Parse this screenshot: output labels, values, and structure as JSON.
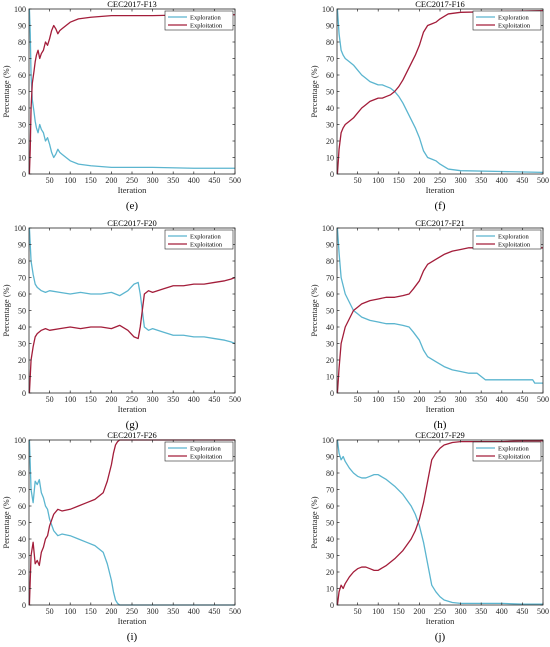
{
  "chart_data": [
    {
      "type": "line",
      "subfigure": "(e)",
      "title": "CEC2017-F13",
      "xlabel": "Iteration",
      "ylabel": "Percentage (%)",
      "xlim": [
        0,
        500
      ],
      "ylim": [
        0,
        100
      ],
      "xticks": [
        50,
        100,
        150,
        200,
        250,
        300,
        350,
        400,
        450,
        500
      ],
      "yticks": [
        0,
        10,
        20,
        30,
        40,
        50,
        60,
        70,
        80,
        90,
        100
      ],
      "legend": "top-right",
      "series": [
        {
          "name": "Exploration",
          "color": "#5bb5cf",
          "x": [
            1,
            3,
            5,
            8,
            12,
            15,
            18,
            22,
            26,
            30,
            35,
            40,
            45,
            50,
            55,
            60,
            65,
            70,
            75,
            80,
            90,
            100,
            120,
            150,
            200,
            250,
            300,
            400,
            500
          ],
          "y": [
            100,
            85,
            60,
            45,
            38,
            32,
            28,
            25,
            30,
            27,
            25,
            20,
            22,
            18,
            13,
            10,
            12,
            15,
            13,
            12,
            10,
            8,
            6,
            5,
            4,
            4,
            4,
            3.5,
            3.5
          ]
        },
        {
          "name": "Exploitation",
          "color": "#a31d3a",
          "x": [
            1,
            3,
            5,
            8,
            12,
            15,
            18,
            22,
            26,
            30,
            35,
            40,
            45,
            50,
            55,
            60,
            65,
            70,
            75,
            80,
            90,
            100,
            120,
            150,
            200,
            250,
            300,
            400,
            500
          ],
          "y": [
            0,
            15,
            40,
            55,
            62,
            68,
            72,
            75,
            70,
            73,
            75,
            80,
            78,
            82,
            87,
            90,
            88,
            85,
            87,
            88,
            90,
            92,
            94,
            95,
            96,
            96,
            96,
            96.5,
            96.5
          ]
        }
      ]
    },
    {
      "type": "line",
      "subfigure": "(f)",
      "title": "CEC2017-F16",
      "xlabel": "Iteration",
      "ylabel": "Percentage (%)",
      "xlim": [
        0,
        500
      ],
      "ylim": [
        0,
        100
      ],
      "xticks": [
        50,
        100,
        150,
        200,
        250,
        300,
        350,
        400,
        450,
        500
      ],
      "yticks": [
        0,
        10,
        20,
        30,
        40,
        50,
        60,
        70,
        80,
        90,
        100
      ],
      "legend": "top-right",
      "series": [
        {
          "name": "Exploration",
          "color": "#5bb5cf",
          "x": [
            1,
            5,
            10,
            15,
            20,
            30,
            40,
            50,
            60,
            70,
            80,
            90,
            100,
            110,
            120,
            130,
            140,
            150,
            160,
            170,
            180,
            190,
            200,
            210,
            220,
            230,
            240,
            250,
            270,
            300,
            400,
            500
          ],
          "y": [
            100,
            85,
            75,
            72,
            70,
            68,
            66,
            63,
            60,
            58,
            56,
            55,
            54,
            54,
            53,
            52,
            50,
            47,
            43,
            38,
            33,
            28,
            22,
            14,
            10,
            9,
            8,
            6,
            3,
            2,
            1.5,
            1
          ]
        },
        {
          "name": "Exploitation",
          "color": "#a31d3a",
          "x": [
            1,
            5,
            10,
            15,
            20,
            30,
            40,
            50,
            60,
            70,
            80,
            90,
            100,
            110,
            120,
            130,
            140,
            150,
            160,
            170,
            180,
            190,
            200,
            210,
            220,
            230,
            240,
            250,
            270,
            300,
            400,
            500
          ],
          "y": [
            0,
            15,
            25,
            28,
            30,
            32,
            34,
            37,
            40,
            42,
            44,
            45,
            46,
            46,
            47,
            48,
            50,
            53,
            57,
            62,
            67,
            72,
            78,
            86,
            90,
            91,
            92,
            94,
            97,
            98,
            98.5,
            99
          ]
        }
      ]
    },
    {
      "type": "line",
      "subfigure": "(g)",
      "title": "CEC2017-F20",
      "xlabel": "Iteration",
      "ylabel": "Percentage (%)",
      "xlim": [
        0,
        500
      ],
      "ylim": [
        0,
        100
      ],
      "xticks": [
        50,
        100,
        150,
        200,
        250,
        300,
        350,
        400,
        450,
        500
      ],
      "yticks": [
        0,
        10,
        20,
        30,
        40,
        50,
        60,
        70,
        80,
        90,
        100
      ],
      "legend": "top-right",
      "series": [
        {
          "name": "Exploration",
          "color": "#5bb5cf",
          "x": [
            1,
            5,
            10,
            15,
            20,
            30,
            40,
            50,
            75,
            100,
            125,
            150,
            175,
            200,
            220,
            240,
            255,
            265,
            270,
            275,
            280,
            290,
            300,
            325,
            350,
            375,
            400,
            425,
            450,
            475,
            490,
            500
          ],
          "y": [
            100,
            80,
            72,
            66,
            64,
            62,
            61,
            62,
            61,
            60,
            61,
            60,
            60,
            61,
            59,
            62,
            66,
            67,
            60,
            50,
            40,
            38,
            39,
            37,
            35,
            35,
            34,
            34,
            33,
            32,
            31,
            30
          ]
        },
        {
          "name": "Exploitation",
          "color": "#a31d3a",
          "x": [
            1,
            5,
            10,
            15,
            20,
            30,
            40,
            50,
            75,
            100,
            125,
            150,
            175,
            200,
            220,
            240,
            255,
            265,
            270,
            275,
            280,
            290,
            300,
            325,
            350,
            375,
            400,
            425,
            450,
            475,
            490,
            500
          ],
          "y": [
            0,
            20,
            28,
            34,
            36,
            38,
            39,
            38,
            39,
            40,
            39,
            40,
            40,
            39,
            41,
            38,
            34,
            33,
            40,
            50,
            60,
            62,
            61,
            63,
            65,
            65,
            66,
            66,
            67,
            68,
            69,
            70
          ]
        }
      ]
    },
    {
      "type": "line",
      "subfigure": "(h)",
      "title": "CEC2017-F21",
      "xlabel": "Iteration",
      "ylabel": "Percentage (%)",
      "xlim": [
        0,
        500
      ],
      "ylim": [
        0,
        100
      ],
      "xticks": [
        50,
        100,
        150,
        200,
        250,
        300,
        350,
        400,
        450,
        500
      ],
      "yticks": [
        0,
        10,
        20,
        30,
        40,
        50,
        60,
        70,
        80,
        90,
        100
      ],
      "legend": "top-right",
      "series": [
        {
          "name": "Exploration",
          "color": "#5bb5cf",
          "x": [
            1,
            5,
            10,
            15,
            20,
            30,
            40,
            50,
            60,
            80,
            100,
            120,
            140,
            160,
            175,
            185,
            200,
            210,
            220,
            240,
            260,
            280,
            300,
            320,
            340,
            350,
            360,
            400,
            450,
            475,
            480,
            500
          ],
          "y": [
            100,
            85,
            70,
            65,
            60,
            55,
            50,
            48,
            46,
            44,
            43,
            42,
            42,
            41,
            40,
            37,
            32,
            26,
            22,
            19,
            16,
            14,
            13,
            12,
            12,
            10,
            8,
            8,
            8,
            8,
            6,
            6
          ]
        },
        {
          "name": "Exploitation",
          "color": "#a31d3a",
          "x": [
            1,
            5,
            10,
            15,
            20,
            30,
            40,
            50,
            60,
            80,
            100,
            120,
            140,
            160,
            175,
            185,
            200,
            210,
            220,
            240,
            260,
            280,
            300,
            320,
            340,
            350,
            360,
            400,
            450,
            475,
            480,
            500
          ],
          "y": [
            0,
            15,
            30,
            35,
            40,
            45,
            50,
            52,
            54,
            56,
            57,
            58,
            58,
            59,
            60,
            63,
            68,
            74,
            78,
            81,
            84,
            86,
            87,
            88,
            88,
            88,
            88,
            88,
            88,
            88,
            88,
            88
          ]
        }
      ]
    },
    {
      "type": "line",
      "subfigure": "(i)",
      "title": "CEC2017-F26",
      "xlabel": "Iteration",
      "ylabel": "Percentage (%)",
      "xlim": [
        0,
        500
      ],
      "ylim": [
        0,
        100
      ],
      "xticks": [
        50,
        100,
        150,
        200,
        250,
        300,
        350,
        400,
        450,
        500
      ],
      "yticks": [
        0,
        10,
        20,
        30,
        40,
        50,
        60,
        70,
        80,
        90,
        100
      ],
      "legend": "top-right",
      "series": [
        {
          "name": "Exploration",
          "color": "#5bb5cf",
          "x": [
            1,
            5,
            10,
            15,
            20,
            25,
            30,
            35,
            40,
            45,
            50,
            60,
            70,
            80,
            100,
            120,
            140,
            160,
            180,
            190,
            200,
            205,
            210,
            215,
            220,
            230,
            500
          ],
          "y": [
            100,
            70,
            62,
            75,
            73,
            76,
            68,
            65,
            60,
            58,
            52,
            45,
            42,
            43,
            42,
            40,
            38,
            36,
            32,
            25,
            15,
            8,
            3,
            1,
            0,
            0,
            0
          ]
        },
        {
          "name": "Exploitation",
          "color": "#a31d3a",
          "x": [
            1,
            5,
            10,
            15,
            20,
            25,
            30,
            35,
            40,
            45,
            50,
            60,
            70,
            80,
            100,
            120,
            140,
            160,
            180,
            190,
            200,
            205,
            210,
            215,
            220,
            230,
            500
          ],
          "y": [
            0,
            30,
            38,
            25,
            27,
            24,
            32,
            35,
            40,
            42,
            48,
            55,
            58,
            57,
            58,
            60,
            62,
            64,
            68,
            75,
            85,
            92,
            97,
            99,
            100,
            100,
            100
          ]
        }
      ]
    },
    {
      "type": "line",
      "subfigure": "(j)",
      "title": "CEC2017-F29",
      "xlabel": "Iteration",
      "ylabel": "Percentage (%)",
      "xlim": [
        0,
        500
      ],
      "ylim": [
        0,
        100
      ],
      "xticks": [
        50,
        100,
        150,
        200,
        250,
        300,
        350,
        400,
        450,
        500
      ],
      "yticks": [
        0,
        10,
        20,
        30,
        40,
        50,
        60,
        70,
        80,
        90,
        100
      ],
      "legend": "top-right",
      "series": [
        {
          "name": "Exploration",
          "color": "#5bb5cf",
          "x": [
            1,
            5,
            10,
            15,
            20,
            30,
            40,
            50,
            60,
            70,
            80,
            90,
            100,
            120,
            140,
            160,
            180,
            190,
            200,
            210,
            220,
            230,
            240,
            250,
            260,
            280,
            300,
            350,
            400,
            450,
            500
          ],
          "y": [
            100,
            92,
            88,
            90,
            87,
            83,
            80,
            78,
            77,
            77,
            78,
            79,
            79,
            76,
            72,
            67,
            60,
            55,
            48,
            38,
            25,
            12,
            8,
            5,
            3,
            1.5,
            1,
            1,
            1,
            0.5,
            0.5
          ]
        },
        {
          "name": "Exploitation",
          "color": "#a31d3a",
          "x": [
            1,
            5,
            10,
            15,
            20,
            30,
            40,
            50,
            60,
            70,
            80,
            90,
            100,
            120,
            140,
            160,
            180,
            190,
            200,
            210,
            220,
            230,
            240,
            250,
            260,
            280,
            300,
            350,
            400,
            450,
            500
          ],
          "y": [
            0,
            8,
            12,
            10,
            13,
            17,
            20,
            22,
            23,
            23,
            22,
            21,
            21,
            24,
            28,
            33,
            40,
            45,
            52,
            62,
            75,
            88,
            92,
            95,
            97,
            98.5,
            99,
            99,
            99,
            99.5,
            99.5
          ]
        }
      ]
    }
  ]
}
